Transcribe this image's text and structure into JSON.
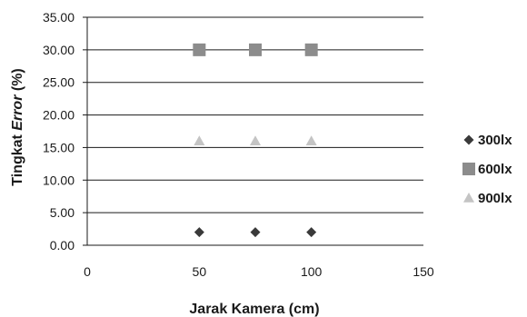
{
  "chart_data": {
    "type": "scatter",
    "xlabel": "Jarak Kamera (cm)",
    "ylabel": {
      "prefix": "Tingkat ",
      "emphasis": "Error",
      "suffix": " (%)"
    },
    "xlim": [
      0,
      150
    ],
    "ylim": [
      0,
      35
    ],
    "x_ticks": [
      "0",
      "50",
      "100",
      "150"
    ],
    "y_ticks": [
      "0.00",
      "5.00",
      "10.00",
      "15.00",
      "20.00",
      "25.00",
      "30.00",
      "35.00"
    ],
    "grid": "horizontal",
    "legend_position": "right",
    "series": [
      {
        "name": "300lx",
        "marker": "diamond",
        "color": "#3a3a3a",
        "x": [
          50,
          75,
          100
        ],
        "y": [
          2,
          2,
          2
        ]
      },
      {
        "name": "600lx",
        "marker": "square",
        "color": "#8c8c8c",
        "x": [
          50,
          75,
          100
        ],
        "y": [
          30,
          30,
          30
        ]
      },
      {
        "name": "900lx",
        "marker": "triangle",
        "color": "#c4c4c4",
        "x": [
          50,
          75,
          100
        ],
        "y": [
          16,
          16,
          16
        ]
      }
    ]
  }
}
